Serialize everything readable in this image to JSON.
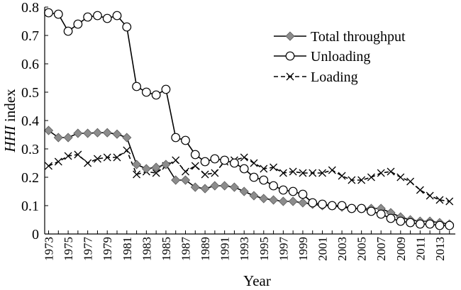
{
  "chart_data": {
    "type": "line",
    "xlabel": "Year",
    "ylabel_italic": "HHI",
    "ylabel_rest": " index",
    "ylim": [
      0,
      0.8
    ],
    "y_ticks": [
      "0",
      "0.1",
      "0.2",
      "0.3",
      "0.4",
      "0.5",
      "0.6",
      "0.7",
      "0.8"
    ],
    "y_tick_values": [
      0,
      0.1,
      0.2,
      0.3,
      0.4,
      0.5,
      0.6,
      0.7,
      0.8
    ],
    "x_ticks": [
      "1973",
      "1975",
      "1977",
      "1979",
      "1981",
      "1983",
      "1985",
      "1987",
      "1989",
      "1991",
      "1993",
      "1995",
      "1997",
      "1999",
      "2001",
      "2003",
      "2005",
      "2007",
      "2009",
      "2011",
      "2013"
    ],
    "x": [
      1973,
      1974,
      1975,
      1976,
      1977,
      1978,
      1979,
      1980,
      1981,
      1982,
      1983,
      1984,
      1985,
      1986,
      1987,
      1988,
      1989,
      1990,
      1991,
      1992,
      1993,
      1994,
      1995,
      1996,
      1997,
      1998,
      1999,
      2000,
      2001,
      2002,
      2003,
      2004,
      2005,
      2006,
      2007,
      2008,
      2009,
      2010,
      2011,
      2012,
      2013,
      2014
    ],
    "legend_position": "top-right",
    "series": [
      {
        "name": "Total throughput",
        "marker": "diamond",
        "dash": "solid",
        "values": [
          0.365,
          0.34,
          0.34,
          0.355,
          0.355,
          0.357,
          0.357,
          0.352,
          0.34,
          0.245,
          0.23,
          0.235,
          0.245,
          0.19,
          0.19,
          0.165,
          0.16,
          0.17,
          0.17,
          0.165,
          0.15,
          0.135,
          0.125,
          0.12,
          0.115,
          0.115,
          0.11,
          0.105,
          0.1,
          0.1,
          0.095,
          0.09,
          0.09,
          0.09,
          0.09,
          0.075,
          0.06,
          0.05,
          0.045,
          0.045,
          0.04,
          0.035
        ]
      },
      {
        "name": "Unloading",
        "marker": "circle",
        "dash": "solid",
        "values": [
          0.78,
          0.775,
          0.715,
          0.74,
          0.765,
          0.77,
          0.76,
          0.77,
          0.73,
          0.52,
          0.5,
          0.49,
          0.51,
          0.34,
          0.33,
          0.28,
          0.255,
          0.265,
          0.26,
          0.25,
          0.23,
          0.2,
          0.19,
          0.17,
          0.155,
          0.15,
          0.14,
          0.11,
          0.105,
          0.1,
          0.1,
          0.09,
          0.09,
          0.08,
          0.07,
          0.055,
          0.045,
          0.04,
          0.035,
          0.035,
          0.03,
          0.03
        ]
      },
      {
        "name": "Loading",
        "marker": "x",
        "dash": "dashed",
        "values": [
          0.24,
          0.255,
          0.275,
          0.28,
          0.25,
          0.265,
          0.27,
          0.27,
          0.295,
          0.21,
          0.22,
          0.215,
          0.24,
          0.26,
          0.22,
          0.24,
          0.21,
          0.215,
          0.255,
          0.26,
          0.27,
          0.25,
          0.23,
          0.235,
          0.215,
          0.22,
          0.215,
          0.215,
          0.215,
          0.225,
          0.205,
          0.19,
          0.19,
          0.2,
          0.215,
          0.22,
          0.2,
          0.185,
          0.155,
          0.135,
          0.12,
          0.115
        ]
      }
    ]
  }
}
